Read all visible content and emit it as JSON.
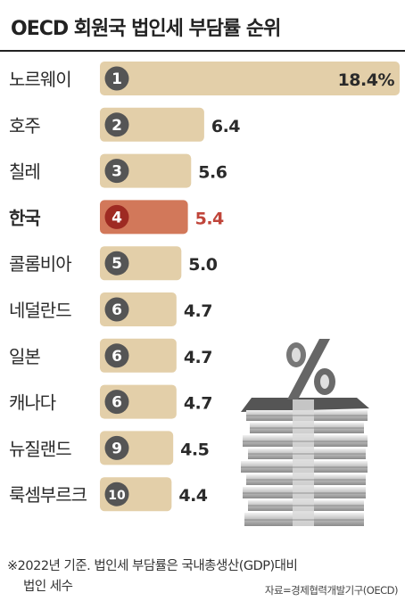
{
  "title": "OECD 회원국 법인세 부담률 순위",
  "chart_data": {
    "type": "bar",
    "orientation": "horizontal",
    "categories": [
      "노르웨이",
      "호주",
      "칠레",
      "한국",
      "콜롬비아",
      "네덜란드",
      "일본",
      "캐나다",
      "뉴질랜드",
      "룩셈부르크"
    ],
    "ranks": [
      "1",
      "2",
      "3",
      "4",
      "5",
      "6",
      "6",
      "6",
      "9",
      "10"
    ],
    "values": [
      18.4,
      6.4,
      5.6,
      5.4,
      5.0,
      4.7,
      4.7,
      4.7,
      4.5,
      4.4
    ],
    "value_labels": [
      "18.4%",
      "6.4",
      "5.6",
      "5.4",
      "5.0",
      "4.7",
      "4.7",
      "4.7",
      "4.5",
      "4.4"
    ],
    "highlight": "한국",
    "colors": {
      "bar": "#e3cfa9",
      "bar_highlight": "#d2785a",
      "badge": "#555555",
      "badge_highlight": "#9e2a22",
      "label_highlight": "#c0453a"
    }
  },
  "footnote": {
    "line1": "※2022년 기준. 법인세 부담률은 국내총생산(GDP)대비",
    "line2": "법인 세수"
  },
  "source": "자료=경제협력개발기구(OECD)",
  "illustration": {
    "symbol": "%"
  }
}
